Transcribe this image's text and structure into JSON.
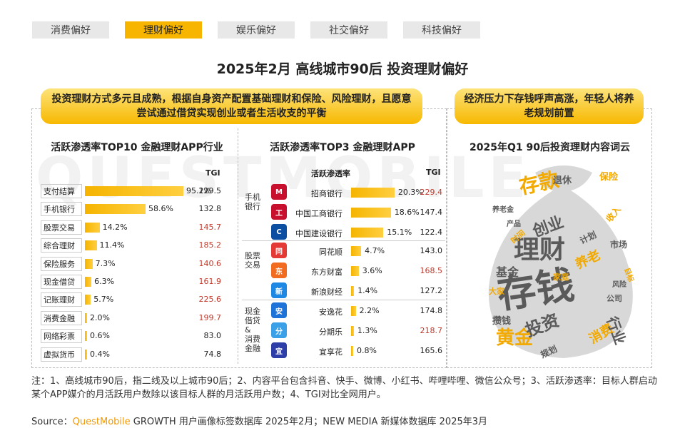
{
  "tabs": [
    "消费偏好",
    "理财偏好",
    "娱乐偏好",
    "社交偏好",
    "科技偏好"
  ],
  "active_tab": 1,
  "title": "2025年2月 高线城市90后 投资理财偏好",
  "callout_left": "投资理财方式多元且成熟，根据自身资产配置基础理财和保险、风险理财，且愿意尝试通过借贷实现创业或者生活收支的平衡",
  "callout_right": "经济压力下存钱呼声高涨，年轻人将养老规划前置",
  "watermark": "QUESTMOBILE",
  "chart_data": [
    {
      "type": "bar",
      "title": "活跃渗透率TOP10 金融理财APP行业",
      "tgi_header": "TGI",
      "categories": [
        "支付结算",
        "手机银行",
        "股票交易",
        "综合理财",
        "保险服务",
        "现金借贷",
        "记账理财",
        "消费金融",
        "网络彩票",
        "虚拟货币"
      ],
      "values": [
        95.2,
        58.6,
        14.2,
        11.4,
        7.3,
        6.3,
        5.7,
        2.0,
        0.6,
        0.4
      ],
      "value_labels": [
        "95.2%",
        "58.6%",
        "14.2%",
        "11.4%",
        "7.3%",
        "6.3%",
        "5.7%",
        "2.0%",
        "0.6%",
        "0.4%"
      ],
      "tgi": [
        "129.5",
        "132.8",
        "145.7",
        "185.2",
        "140.6",
        "161.9",
        "225.6",
        "199.7",
        "83.0",
        "74.8"
      ],
      "tgi_red": [
        false,
        false,
        true,
        true,
        true,
        true,
        true,
        true,
        false,
        false
      ]
    },
    {
      "type": "bar",
      "title": "活跃渗透率TOP3 金融理财APP",
      "pen_header": "活跃渗透率",
      "tgi_header": "TGI",
      "groups": [
        {
          "name": "手机\n银行",
          "apps": [
            {
              "name": "招商银行",
              "value": 20.3,
              "label": "20.3%",
              "tgi": "229.4",
              "red": true,
              "icon": "M",
              "color": "#c8102e"
            },
            {
              "name": "中国工商银行",
              "value": 18.6,
              "label": "18.6%",
              "tgi": "147.4",
              "red": false,
              "icon": "工",
              "color": "#c8102e"
            },
            {
              "name": "中国建设银行",
              "value": 15.1,
              "label": "15.1%",
              "tgi": "122.4",
              "red": false,
              "icon": "C",
              "color": "#0b4ea2"
            }
          ]
        },
        {
          "name": "股票\n交易",
          "apps": [
            {
              "name": "同花顺",
              "value": 4.7,
              "label": "4.7%",
              "tgi": "143.0",
              "red": false,
              "icon": "同",
              "color": "#e53935"
            },
            {
              "name": "东方财富",
              "value": 3.6,
              "label": "3.6%",
              "tgi": "168.5",
              "red": true,
              "icon": "东",
              "color": "#f26c1f"
            },
            {
              "name": "新浪财经",
              "value": 1.4,
              "label": "1.4%",
              "tgi": "127.2",
              "red": false,
              "icon": "新",
              "color": "#1e88e5"
            }
          ]
        },
        {
          "name": "现金\n借贷\n&\n消费\n金融",
          "apps": [
            {
              "name": "安逸花",
              "value": 2.2,
              "label": "2.2%",
              "tgi": "174.8",
              "red": false,
              "icon": "安",
              "color": "#1e73d8"
            },
            {
              "name": "分期乐",
              "value": 1.3,
              "label": "1.3%",
              "tgi": "218.7",
              "red": true,
              "icon": "分",
              "color": "#3aa0e8"
            },
            {
              "name": "宜享花",
              "value": 0.8,
              "label": "0.8%",
              "tgi": "165.6",
              "red": false,
              "icon": "宜",
              "color": "#2e3ea8"
            }
          ]
        }
      ]
    },
    {
      "type": "wordcloud",
      "title": "2025年Q1 90后投资理财内容词云",
      "words": [
        {
          "text": "存钱",
          "size": 54,
          "color": "#5a5a5a"
        },
        {
          "text": "理财",
          "size": 36,
          "color": "#5a5a5a"
        },
        {
          "text": "存款",
          "size": 28,
          "color": "#f2a900"
        },
        {
          "text": "黄金",
          "size": 26,
          "color": "#f2a900"
        },
        {
          "text": "投资",
          "size": 24,
          "color": "#5a5a5a"
        },
        {
          "text": "创业",
          "size": 22,
          "color": "#5a5a5a"
        },
        {
          "text": "养老",
          "size": 18,
          "color": "#f2a900"
        },
        {
          "text": "消费",
          "size": 18,
          "color": "#f2a900"
        },
        {
          "text": "基金",
          "size": 16,
          "color": "#5a5a5a"
        },
        {
          "text": "行业",
          "size": 20,
          "color": "#5a5a5a"
        },
        {
          "text": "退休",
          "size": 13,
          "color": "#5a5a5a"
        },
        {
          "text": "保险",
          "size": 13,
          "color": "#f2a900"
        },
        {
          "text": "攒钱",
          "size": 13,
          "color": "#5a5a5a"
        },
        {
          "text": "计划",
          "size": 12,
          "color": "#5a5a5a"
        },
        {
          "text": "收入",
          "size": 12,
          "color": "#f2a900"
        },
        {
          "text": "市场",
          "size": 12,
          "color": "#5a5a5a"
        },
        {
          "text": "公司",
          "size": 11,
          "color": "#5a5a5a"
        },
        {
          "text": "家庭",
          "size": 11,
          "color": "#f2a900"
        },
        {
          "text": "时间",
          "size": 11,
          "color": "#f2a900"
        },
        {
          "text": "大家",
          "size": 11,
          "color": "#f2a900"
        },
        {
          "text": "产品",
          "size": 10,
          "color": "#5a5a5a"
        },
        {
          "text": "目标",
          "size": 10,
          "color": "#f2a900"
        },
        {
          "text": "规划",
          "size": 12,
          "color": "#5a5a5a"
        },
        {
          "text": "风险",
          "size": 10,
          "color": "#5a5a5a"
        },
        {
          "text": "养老金",
          "size": 10,
          "color": "#5a5a5a"
        }
      ]
    }
  ],
  "note": "注：1、高线城市90后，指二线及以上城市90后；2、内容平台包含抖音、快手、微博、小红书、哔哩哔哩、微信公众号；3、活跃渗透率：目标人群启动某个APP媒介的月活跃用户数除以该目标人群的月活跃用户数；4、TGI对比全网用户。",
  "source_prefix": "Source：",
  "source_brand": "QuestMobile",
  "source_rest": " GROWTH 用户画像标签数据库 2025年2月；NEW MEDIA 新媒体数据库 2025年3月",
  "colors": {
    "accent": "#f7b500",
    "red": "#c0392b"
  }
}
